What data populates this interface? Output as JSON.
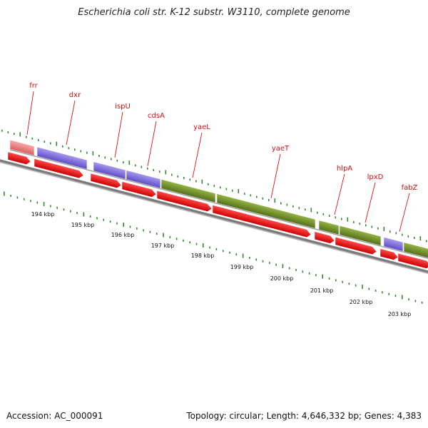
{
  "title": "Escherichia coli str. K-12 substr. W3110, complete genome",
  "accession_text": "Accession: AC_000091",
  "summary_text": "Topology: circular; Length: 4,646,332 bp; Genes: 4,383",
  "colors": {
    "label": "#cc1111",
    "cds_arrow": "#ff0000",
    "feature_purple": "#7b68d6",
    "feature_green": "#6b8e23",
    "feature_pink": "#ef8080",
    "backbone": "#7a7a7a",
    "tick_green": "#2e8b2e"
  },
  "genes": [
    {
      "name": "frr"
    },
    {
      "name": "dxr"
    },
    {
      "name": "ispU"
    },
    {
      "name": "cdsA"
    },
    {
      "name": "yaeL"
    },
    {
      "name": "yaeT"
    },
    {
      "name": "hlpA"
    },
    {
      "name": "lpxD"
    },
    {
      "name": "fabZ"
    }
  ],
  "kbp_ticks": [
    "194 kbp",
    "195 kbp",
    "196 kbp",
    "197 kbp",
    "198 kbp",
    "199 kbp",
    "200 kbp",
    "201 kbp",
    "202 kbp",
    "203 kbp"
  ]
}
